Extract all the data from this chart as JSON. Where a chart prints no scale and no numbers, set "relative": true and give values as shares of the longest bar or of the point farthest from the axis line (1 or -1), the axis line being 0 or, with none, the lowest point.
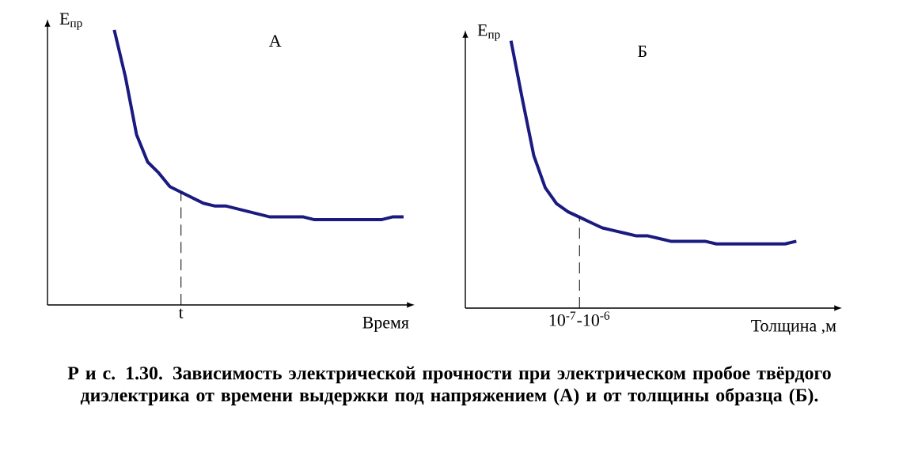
{
  "chart_data": [
    {
      "type": "line",
      "title": "А",
      "xlabel": "Время",
      "ylabel": "E$_{пр}$",
      "relative": true,
      "color": "#1a1a80",
      "categories": [
        null,
        null,
        null,
        null,
        null,
        null,
        null,
        null,
        null,
        null,
        null,
        null,
        null,
        null,
        null,
        null,
        null,
        null,
        null,
        null,
        null,
        null,
        null,
        null,
        null,
        null,
        null,
        null,
        null,
        null,
        null,
        null,
        null,
        null
      ],
      "values": [
        null,
        null,
        null,
        null,
        null,
        null,
        1,
        0.83,
        0.62,
        0.52,
        0.48,
        0.43,
        0.41,
        0.39,
        0.37,
        0.36,
        0.36,
        0.35,
        0.34,
        0.33,
        0.32,
        0.32,
        0.32,
        0.32,
        0.31,
        0.31,
        0.31,
        0.31,
        0.31,
        0.31,
        0.31,
        0.32,
        0.32,
        null
      ],
      "annotations": [
        "t",
        "Р и с. 1.30. Зависимость электрической прочности при электрическом пробое твёрдого диэлектрика от времени выдержки под напряжением (А) и от толщины образца (Б)."
      ]
    },
    {
      "type": "line",
      "title": "Б",
      "xlabel": "Толщина ,м",
      "ylabel": "E$_{пр}$",
      "relative": true,
      "color": "#1a1a80",
      "categories": [
        null,
        null,
        null,
        null,
        null,
        null,
        null,
        null,
        null,
        null,
        null,
        null,
        null,
        null,
        null,
        null,
        null,
        null,
        null,
        null,
        null,
        null,
        null,
        null,
        null,
        null,
        null,
        null,
        null,
        null,
        null,
        null,
        null,
        null
      ],
      "values": [
        null,
        null,
        null,
        null,
        1,
        0.78,
        0.57,
        0.45,
        0.39,
        0.36,
        0.34,
        0.32,
        0.3,
        0.29,
        0.28,
        0.27,
        0.27,
        0.26,
        0.25,
        0.25,
        0.25,
        0.25,
        0.24,
        0.24,
        0.24,
        0.24,
        0.24,
        0.24,
        0.24,
        0.25,
        null,
        null,
        null,
        null
      ],
      "annotations": [
        "10$^{-7}$-10$^{-6}$"
      ]
    }
  ]
}
